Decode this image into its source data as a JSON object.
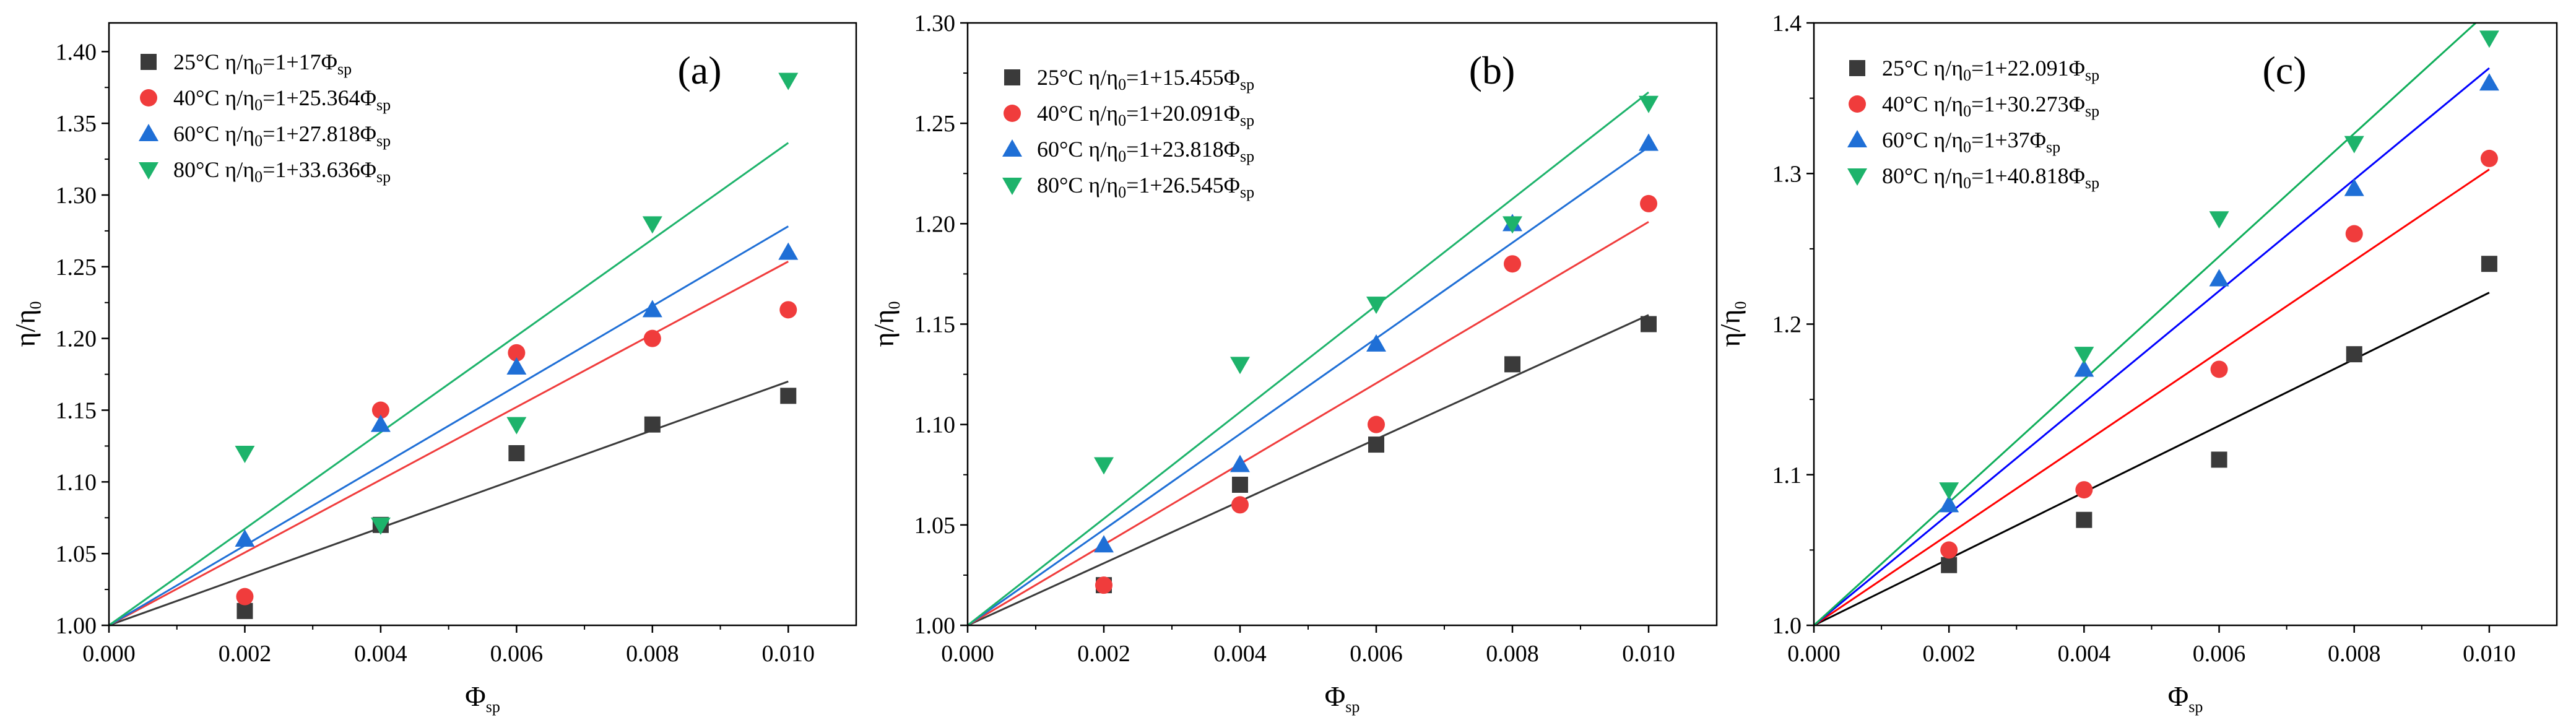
{
  "chart_data": [
    {
      "type": "scatter",
      "panel_label": "(a)",
      "xlabel": "Φ",
      "xlabel_sub": "sp",
      "ylabel": "η/η",
      "ylabel_sub": "0",
      "xlim": [
        0,
        0.011
      ],
      "ylim": [
        1.0,
        1.42
      ],
      "xticks": [
        "0.000",
        "0.002",
        "0.004",
        "0.006",
        "0.008",
        "0.010"
      ],
      "yticks": [
        "1.00",
        "1.05",
        "1.10",
        "1.15",
        "1.20",
        "1.25",
        "1.30",
        "1.35",
        "1.40"
      ],
      "legend_position": "top-left",
      "x": [
        0.002,
        0.004,
        0.006,
        0.008,
        0.01
      ],
      "series": [
        {
          "name": "25°C",
          "legend_main": "η/η",
          "legend_sub1": "0",
          "legend_mid": "=1+17Φ",
          "legend_sub2": "sp",
          "slope": 17,
          "marker": "square",
          "color": "#3a3a3a",
          "values": [
            1.01,
            1.07,
            1.12,
            1.14,
            1.16
          ]
        },
        {
          "name": "40°C",
          "legend_main": "η/η",
          "legend_sub1": "0",
          "legend_mid": "=1+25.364Φ",
          "legend_sub2": "sp",
          "slope": 25.364,
          "marker": "circle",
          "color": "#f03c3c",
          "values": [
            1.02,
            1.15,
            1.19,
            1.2,
            1.22
          ]
        },
        {
          "name": "60°C",
          "legend_main": "η/η",
          "legend_sub1": "0",
          "legend_mid": "=1+27.818Φ",
          "legend_sub2": "sp",
          "slope": 27.818,
          "marker": "triangle-up",
          "color": "#1f6fd6",
          "values": [
            1.06,
            1.14,
            1.18,
            1.22,
            1.26
          ]
        },
        {
          "name": "80°C",
          "legend_main": "η/η",
          "legend_sub1": "0",
          "legend_mid": "=1+33.636Φ",
          "legend_sub2": "sp",
          "slope": 33.636,
          "marker": "triangle-down",
          "color": "#1db36b",
          "values": [
            1.12,
            1.07,
            1.14,
            1.28,
            1.38
          ]
        }
      ]
    },
    {
      "type": "scatter",
      "panel_label": "(b)",
      "xlabel": "Φ",
      "xlabel_sub": "sp",
      "ylabel": "η/η",
      "ylabel_sub": "0",
      "xlim": [
        0,
        0.011
      ],
      "ylim": [
        1.0,
        1.3
      ],
      "xticks": [
        "0.000",
        "0.002",
        "0.004",
        "0.006",
        "0.008",
        "0.010"
      ],
      "yticks": [
        "1.00",
        "1.05",
        "1.10",
        "1.15",
        "1.20",
        "1.25",
        "1.30"
      ],
      "legend_position": "top-left",
      "x": [
        0.002,
        0.004,
        0.006,
        0.008,
        0.01
      ],
      "series": [
        {
          "name": "25°C",
          "legend_main": "η/η",
          "legend_sub1": "0",
          "legend_mid": "=1+15.455Φ",
          "legend_sub2": "sp",
          "slope": 15.455,
          "marker": "square",
          "color": "#3a3a3a",
          "values": [
            1.02,
            1.07,
            1.09,
            1.13,
            1.15
          ]
        },
        {
          "name": "40°C",
          "legend_main": "η/η",
          "legend_sub1": "0",
          "legend_mid": "=1+20.091Φ",
          "legend_sub2": "sp",
          "slope": 20.091,
          "marker": "circle",
          "color": "#f03c3c",
          "values": [
            1.02,
            1.06,
            1.1,
            1.18,
            1.21
          ]
        },
        {
          "name": "60°C",
          "legend_main": "η/η",
          "legend_sub1": "0",
          "legend_mid": "=1+23.818Φ",
          "legend_sub2": "sp",
          "slope": 23.818,
          "marker": "triangle-up",
          "color": "#1f6fd6",
          "values": [
            1.04,
            1.08,
            1.14,
            1.2,
            1.24
          ]
        },
        {
          "name": "80°C",
          "legend_main": "η/η",
          "legend_sub1": "0",
          "legend_mid": "=1+26.545Φ",
          "legend_sub2": "sp",
          "slope": 26.545,
          "marker": "triangle-down",
          "color": "#1db36b",
          "values": [
            1.08,
            1.13,
            1.16,
            1.2,
            1.26
          ]
        }
      ]
    },
    {
      "type": "scatter",
      "panel_label": "(c)",
      "xlabel": "Φ",
      "xlabel_sub": "sp",
      "ylabel": "η/η",
      "ylabel_sub": "0",
      "xlim": [
        0,
        0.011
      ],
      "ylim": [
        1.0,
        1.4
      ],
      "xticks": [
        "0.000",
        "0.002",
        "0.004",
        "0.006",
        "0.008",
        "0.010"
      ],
      "yticks": [
        "1.0",
        "1.1",
        "1.2",
        "1.3",
        "1.4"
      ],
      "legend_position": "top-left",
      "x": [
        0.002,
        0.004,
        0.006,
        0.008,
        0.01
      ],
      "series": [
        {
          "name": "25°C",
          "legend_main": "η/η",
          "legend_sub1": "0",
          "legend_mid": "=1+22.091Φ",
          "legend_sub2": "sp",
          "slope": 22.091,
          "marker": "square",
          "color": "#3a3a3a",
          "line_color": "#000000",
          "values": [
            1.04,
            1.07,
            1.11,
            1.18,
            1.24
          ]
        },
        {
          "name": "40°C",
          "legend_main": "η/η",
          "legend_sub1": "0",
          "legend_mid": "=1+30.273Φ",
          "legend_sub2": "sp",
          "slope": 30.273,
          "marker": "circle",
          "color": "#f03c3c",
          "line_color": "#ff0000",
          "values": [
            1.05,
            1.09,
            1.17,
            1.26,
            1.31
          ]
        },
        {
          "name": "60°C",
          "legend_main": "η/η",
          "legend_sub1": "0",
          "legend_mid": "=1+37Φ",
          "legend_sub2": "sp",
          "slope": 37,
          "marker": "triangle-up",
          "color": "#1f6fd6",
          "line_color": "#0000ff",
          "values": [
            1.08,
            1.17,
            1.23,
            1.29,
            1.36
          ]
        },
        {
          "name": "80°C",
          "legend_main": "η/η",
          "legend_sub1": "0",
          "legend_mid": "=1+40.818Φ",
          "legend_sub2": "sp",
          "slope": 40.818,
          "marker": "triangle-down",
          "color": "#1db36b",
          "line_color": "#0fae5a",
          "values": [
            1.09,
            1.18,
            1.27,
            1.32,
            1.39
          ]
        }
      ]
    }
  ]
}
